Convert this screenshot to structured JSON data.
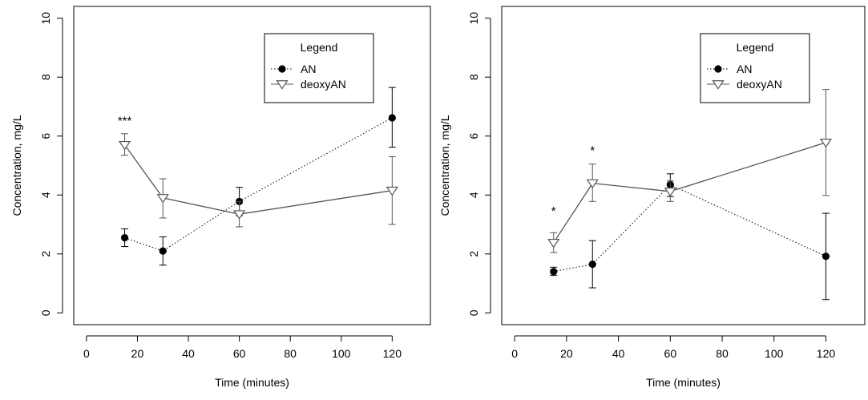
{
  "chart_data": [
    {
      "type": "line",
      "title": "",
      "xlabel": "Time (minutes)",
      "ylabel": "Concentration, mg/L",
      "xlim": [
        -5,
        135
      ],
      "ylim": [
        -0.4,
        10.4
      ],
      "x_ticks": [
        0,
        20,
        40,
        60,
        80,
        100,
        120
      ],
      "y_ticks": [
        0,
        2,
        4,
        6,
        8,
        10
      ],
      "grid": false,
      "legend": {
        "title": "Legend",
        "position": "top-right"
      },
      "series": [
        {
          "name": "AN",
          "marker": "filled-circle",
          "line_style": "dotted",
          "color": "#000000",
          "x": [
            15,
            30,
            60,
            120
          ],
          "y": [
            2.55,
            2.1,
            3.78,
            6.62
          ],
          "err_low": [
            2.25,
            1.62,
            3.3,
            5.62
          ],
          "err_high": [
            2.85,
            2.58,
            4.26,
            7.65
          ]
        },
        {
          "name": "deoxyAN",
          "marker": "open-triangle-down",
          "line_style": "solid",
          "color": "#555555",
          "x": [
            15,
            30,
            60,
            120
          ],
          "y": [
            5.7,
            3.9,
            3.35,
            4.15
          ],
          "err_low": [
            5.35,
            3.22,
            2.92,
            3.0
          ],
          "err_high": [
            6.08,
            4.55,
            3.78,
            5.3
          ]
        }
      ],
      "annotations": [
        {
          "text": "***",
          "x": 15,
          "y": 6.6
        }
      ]
    },
    {
      "type": "line",
      "title": "",
      "xlabel": "Time (minutes)",
      "ylabel": "Concentration, mg/L",
      "xlim": [
        -5,
        135
      ],
      "ylim": [
        -0.4,
        10.4
      ],
      "x_ticks": [
        0,
        20,
        40,
        60,
        80,
        100,
        120
      ],
      "y_ticks": [
        0,
        2,
        4,
        6,
        8,
        10
      ],
      "grid": false,
      "legend": {
        "title": "Legend",
        "position": "top-right"
      },
      "series": [
        {
          "name": "AN",
          "marker": "filled-circle",
          "line_style": "dotted",
          "color": "#000000",
          "x": [
            15,
            30,
            60,
            120
          ],
          "y": [
            1.4,
            1.65,
            4.35,
            1.92
          ],
          "err_low": [
            1.27,
            0.85,
            3.95,
            0.45
          ],
          "err_high": [
            1.55,
            2.45,
            4.72,
            3.38
          ]
        },
        {
          "name": "deoxyAN",
          "marker": "open-triangle-down",
          "line_style": "solid",
          "color": "#555555",
          "x": [
            15,
            30,
            60,
            120
          ],
          "y": [
            2.38,
            4.4,
            4.12,
            5.78
          ],
          "err_low": [
            2.05,
            3.78,
            3.78,
            3.98
          ],
          "err_high": [
            2.72,
            5.05,
            4.48,
            7.58
          ]
        }
      ],
      "annotations": [
        {
          "text": "*",
          "x": 15,
          "y": 3.55
        },
        {
          "text": "*",
          "x": 30,
          "y": 5.6
        }
      ]
    }
  ]
}
